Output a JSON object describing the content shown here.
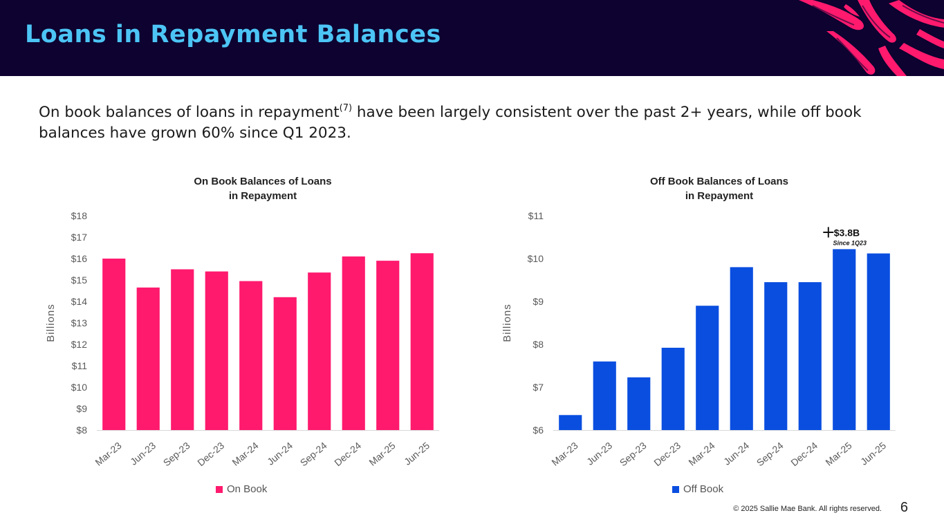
{
  "header": {
    "title": "Loans in Repayment Balances",
    "colors": {
      "background": "#0d0230",
      "title": "#4cc5f5",
      "accent": "#ff1a6e"
    }
  },
  "subtitle": {
    "before": "On book balances of loans in repayment",
    "sup": "(7)",
    "after": " have been largely consistent over the past 2+ years, while off book balances have grown 60% since Q1 2023."
  },
  "chart_data": [
    {
      "type": "bar",
      "title_lines": [
        "On Book Balances of Loans",
        "in Repayment"
      ],
      "ylabel": "Billions",
      "categories": [
        "Mar-23",
        "Jun-23",
        "Sep-23",
        "Dec-23",
        "Mar-24",
        "Jun-24",
        "Sep-24",
        "Dec-24",
        "Mar-25",
        "Jun-25"
      ],
      "series": [
        {
          "name": "On Book",
          "color": "#ff1a6e",
          "values": [
            16.0,
            14.65,
            15.5,
            15.4,
            14.95,
            14.2,
            15.35,
            16.1,
            15.9,
            16.25
          ]
        }
      ],
      "ylim": [
        8,
        18
      ],
      "yticks": [
        8,
        9,
        10,
        11,
        12,
        13,
        14,
        15,
        16,
        17,
        18
      ],
      "ytick_labels": [
        "$8",
        "$9",
        "$10",
        "$11",
        "$12",
        "$13",
        "$14",
        "$15",
        "$16",
        "$17",
        "$18"
      ],
      "grid": false,
      "legend": "bottom"
    },
    {
      "type": "bar",
      "title_lines": [
        "Off Book Balances of Loans",
        "in Repayment"
      ],
      "ylabel": "Billions",
      "categories": [
        "Mar-23",
        "Jun-23",
        "Sep-23",
        "Dec-23",
        "Mar-24",
        "Jun-24",
        "Sep-24",
        "Dec-24",
        "Mar-25",
        "Jun-25"
      ],
      "series": [
        {
          "name": "Off Book",
          "color": "#0a4ee0",
          "values": [
            6.35,
            7.6,
            7.23,
            7.92,
            8.9,
            9.8,
            9.45,
            9.45,
            10.22,
            10.12
          ]
        }
      ],
      "ylim": [
        6,
        11
      ],
      "yticks": [
        6,
        7,
        8,
        9,
        10,
        11
      ],
      "ytick_labels": [
        "$6",
        "$7",
        "$8",
        "$9",
        "$10",
        "$11"
      ],
      "grid": false,
      "legend": "bottom",
      "annotation": {
        "text": "$3.8B",
        "subtext": "Since 1Q23",
        "category": "Mar-25"
      }
    }
  ],
  "footer": {
    "copyright": "© 2025 Sallie Mae Bank. All rights reserved.",
    "page": "6"
  }
}
